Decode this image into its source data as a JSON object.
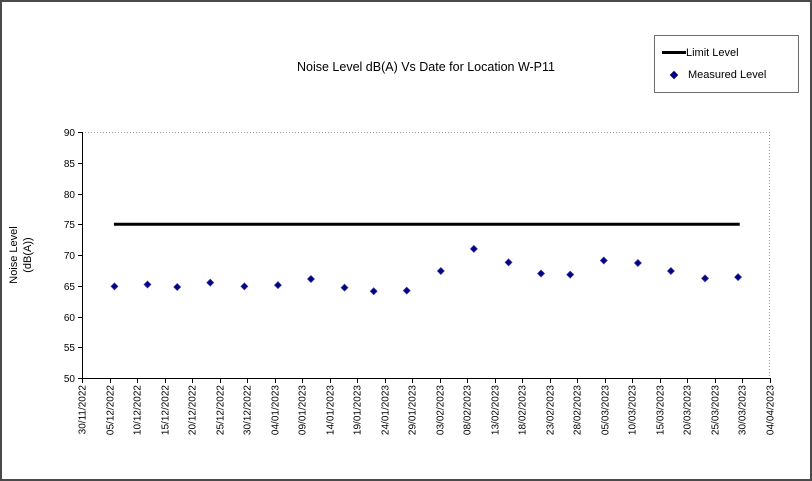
{
  "frame": {
    "background": "#ffffff",
    "border_color": "#4a4a4a"
  },
  "chart_data": {
    "type": "scatter",
    "title": "Noise Level dB(A) Vs Date for Location W-P11",
    "ylabel_lines": [
      "Noise Level",
      "(dB(A))"
    ],
    "xlabel": "",
    "grid": false,
    "legend_position": "top-right",
    "y_axis": {
      "min": 50,
      "max": 90,
      "tick_step": 5,
      "tick_labels": [
        "90",
        "85",
        "80",
        "75",
        "70",
        "65",
        "60",
        "55",
        "50"
      ]
    },
    "x_axis": {
      "tick_interval_days": 5,
      "span_days": 125,
      "tick_labels": [
        "30/11/2022",
        "05/12/2022",
        "10/12/2022",
        "15/12/2022",
        "20/12/2022",
        "25/12/2022",
        "30/12/2022",
        "04/01/2023",
        "09/01/2023",
        "14/01/2023",
        "19/01/2023",
        "24/01/2023",
        "29/01/2023",
        "03/02/2023",
        "08/02/2023",
        "13/02/2023",
        "18/02/2023",
        "23/02/2023",
        "28/02/2023",
        "05/03/2023",
        "10/03/2023",
        "15/03/2023",
        "20/03/2023",
        "25/03/2023",
        "30/03/2023",
        "04/04/2023"
      ]
    },
    "series": [
      {
        "name": "Limit Level",
        "type": "line",
        "color": "#000000",
        "value": 75,
        "start_day": 5.8,
        "end_day": 119.5
      },
      {
        "name": "Measured Level",
        "type": "scatter",
        "marker": "diamond",
        "color": "#000080",
        "points": [
          {
            "date": "06/12/2022",
            "day": 5.9,
            "value": 64.9
          },
          {
            "date": "12/12/2022",
            "day": 11.9,
            "value": 65.2
          },
          {
            "date": "17/12/2022",
            "day": 17.3,
            "value": 64.8
          },
          {
            "date": "23/12/2022",
            "day": 23.3,
            "value": 65.5
          },
          {
            "date": "29/12/2022",
            "day": 29.5,
            "value": 64.9
          },
          {
            "date": "05/01/2023",
            "day": 35.6,
            "value": 65.1
          },
          {
            "date": "11/01/2023",
            "day": 41.6,
            "value": 66.1
          },
          {
            "date": "17/01/2023",
            "day": 47.7,
            "value": 64.7
          },
          {
            "date": "23/01/2023",
            "day": 53.0,
            "value": 64.1
          },
          {
            "date": "29/01/2023",
            "day": 59.0,
            "value": 64.2
          },
          {
            "date": "04/02/2023",
            "day": 65.2,
            "value": 67.4
          },
          {
            "date": "10/02/2023",
            "day": 71.2,
            "value": 71.0
          },
          {
            "date": "16/02/2023",
            "day": 77.5,
            "value": 68.8
          },
          {
            "date": "22/02/2023",
            "day": 83.4,
            "value": 67.0
          },
          {
            "date": "27/02/2023",
            "day": 88.7,
            "value": 66.8
          },
          {
            "date": "05/03/2023",
            "day": 94.8,
            "value": 69.1
          },
          {
            "date": "11/03/2023",
            "day": 101.0,
            "value": 68.7
          },
          {
            "date": "17/03/2023",
            "day": 107.0,
            "value": 67.4
          },
          {
            "date": "23/03/2023",
            "day": 113.2,
            "value": 66.2
          },
          {
            "date": "29/03/2023",
            "day": 119.2,
            "value": 66.4
          }
        ]
      }
    ]
  }
}
